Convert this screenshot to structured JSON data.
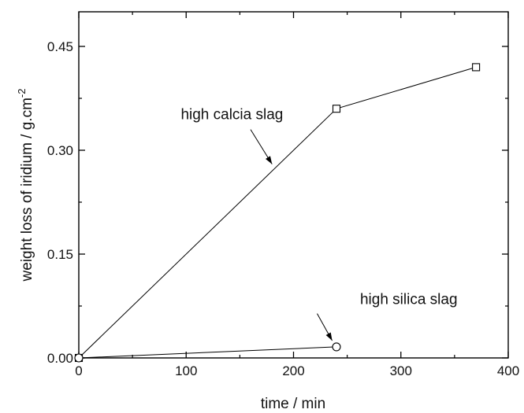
{
  "chart_data": {
    "type": "line",
    "title": "",
    "xlabel": "time / min",
    "ylabel_main": "weight loss of iridium / g.cm",
    "ylabel_sup": "-2",
    "xlim": [
      0,
      400
    ],
    "ylim": [
      0,
      0.5
    ],
    "xticks": [
      0,
      100,
      200,
      300,
      400
    ],
    "xtick_labels": [
      "0",
      "100",
      "200",
      "300",
      "400"
    ],
    "yticks": [
      0,
      0.15,
      0.3,
      0.45
    ],
    "ytick_labels": [
      "0.00",
      "0.15",
      "0.30",
      "0.45"
    ],
    "grid": false,
    "series": [
      {
        "marker": "square",
        "x": [
          0,
          240,
          370
        ],
        "y": [
          0,
          0.36,
          0.42
        ]
      },
      {
        "marker": "circle",
        "x": [
          0,
          240
        ],
        "y": [
          0,
          0.016
        ]
      }
    ],
    "annotations": [
      {
        "text": "high calcia slag",
        "text_at": [
          95,
          0.345
        ],
        "arrow_from": [
          160,
          0.33
        ],
        "arrow_to": [
          180,
          0.28
        ]
      },
      {
        "text": "high silica slag",
        "text_at": [
          262,
          0.078
        ],
        "arrow_from": [
          222,
          0.064
        ],
        "arrow_to": [
          236,
          0.025
        ]
      }
    ]
  }
}
